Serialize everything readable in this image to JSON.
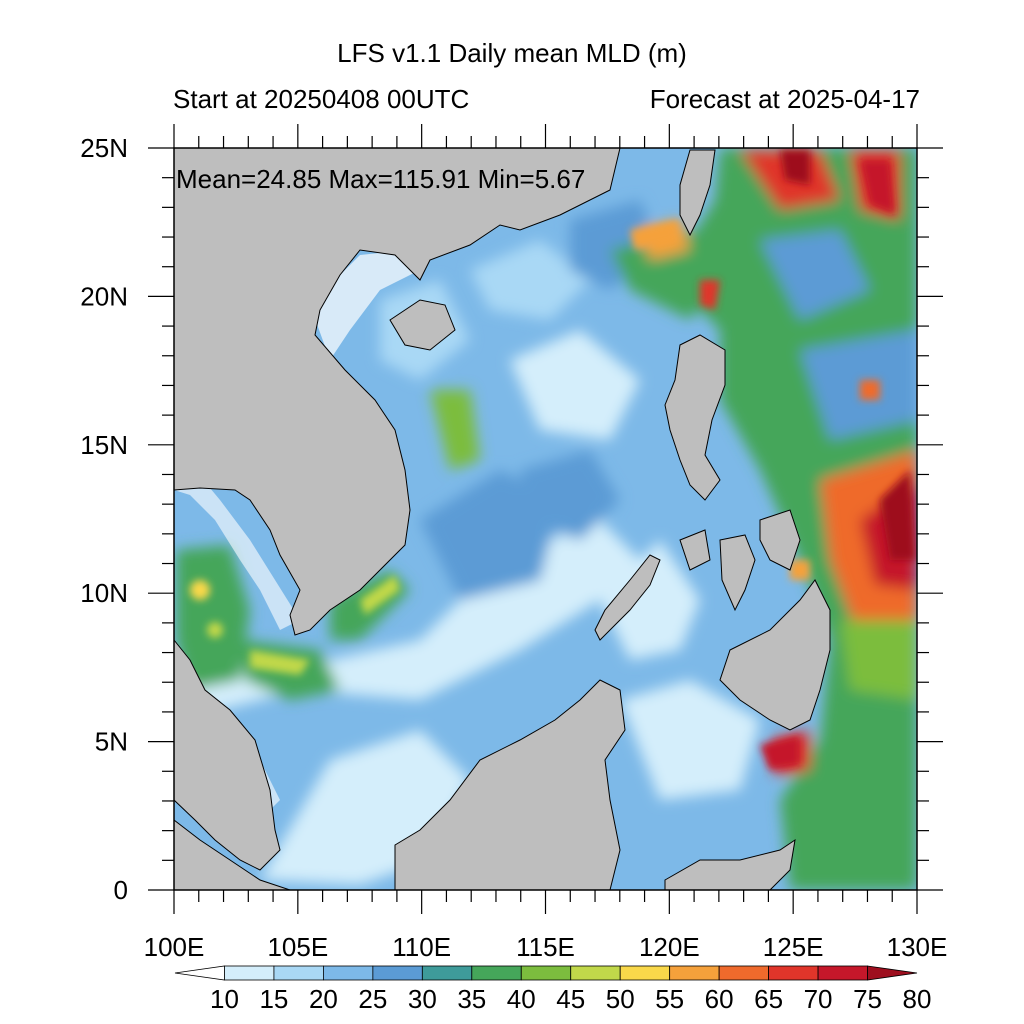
{
  "header": {
    "title": "LFS v1.1 Daily mean MLD (m)",
    "start_text": "Start at 20250408 00UTC",
    "forecast_text": "Forecast at 2025-04-17"
  },
  "stats_text": "Mean=24.85  Max=115.91  Min=5.67",
  "map": {
    "lon_range": [
      100,
      130
    ],
    "lat_range": [
      0,
      25
    ],
    "land_color": "#bebebe",
    "lon_ticks": [
      {
        "value": 100,
        "label": "100E"
      },
      {
        "value": 105,
        "label": "105E"
      },
      {
        "value": 110,
        "label": "110E"
      },
      {
        "value": 115,
        "label": "115E"
      },
      {
        "value": 120,
        "label": "120E"
      },
      {
        "value": 125,
        "label": "125E"
      },
      {
        "value": 130,
        "label": "130E"
      }
    ],
    "lat_ticks": [
      {
        "value": 0,
        "label": "0"
      },
      {
        "value": 5,
        "label": "5N"
      },
      {
        "value": 10,
        "label": "10N"
      },
      {
        "value": 15,
        "label": "15N"
      },
      {
        "value": 20,
        "label": "20N"
      },
      {
        "value": 25,
        "label": "25N"
      }
    ]
  },
  "colorbar": {
    "levels": [
      "10",
      "15",
      "20",
      "25",
      "30",
      "35",
      "40",
      "45",
      "50",
      "55",
      "60",
      "65",
      "70",
      "75",
      "80"
    ],
    "colors": [
      "#ffffff",
      "#d4eefb",
      "#a9d8f5",
      "#7db9e8",
      "#5b9bd5",
      "#3e9b9a",
      "#45a65a",
      "#7cbd3e",
      "#c1d84a",
      "#f9d84a",
      "#f5a13b",
      "#ef6a2c",
      "#e0352a",
      "#c5172a",
      "#9e0f1f"
    ]
  }
}
